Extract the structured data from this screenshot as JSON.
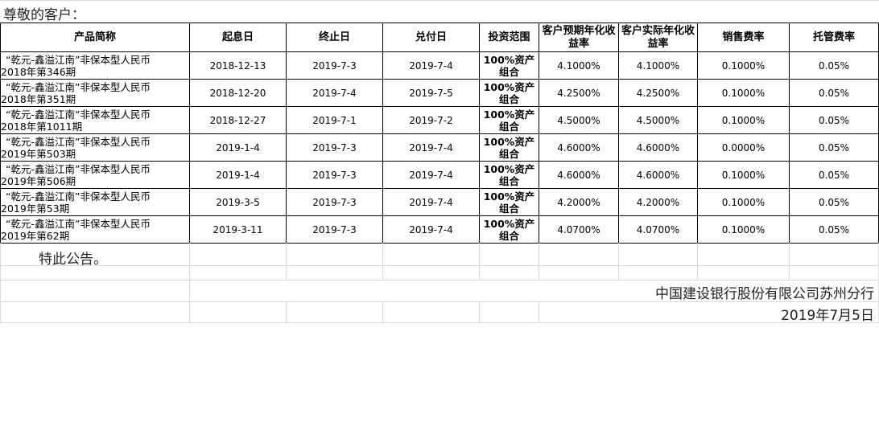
{
  "greeting": "尊敬的客户：",
  "headers": [
    "产品简称",
    "起息日",
    "终止日",
    "兑付日",
    "投资范围",
    "客户预期年化收益率",
    "客户实际年化收益率",
    "销售费率",
    "托管费率"
  ],
  "rows": [
    {
      "name1": "“乾元-鑫溢江南”非保本型人民币",
      "name2": "2018年第346期",
      "start": "2018-12-13",
      "end": "2019-7-3",
      "pay": "2019-7-4",
      "scope": "100%资产组合",
      "expected": "4.1000%",
      "actual": "4.1000%",
      "sales": "0.1000%",
      "custody": "0.05%"
    },
    {
      "name1": "“乾元-鑫溢江南”非保本型人民币",
      "name2": "2018年第351期",
      "start": "2018-12-20",
      "end": "2019-7-4",
      "pay": "2019-7-5",
      "scope": "100%资产组合",
      "expected": "4.2500%",
      "actual": "4.2500%",
      "sales": "0.1000%",
      "custody": "0.05%"
    },
    {
      "name1": "“乾元-鑫溢江南”非保本型人民币",
      "name2": "2018年第1011期",
      "start": "2018-12-27",
      "end": "2019-7-1",
      "pay": "2019-7-2",
      "scope": "100%资产组合",
      "expected": "4.5000%",
      "actual": "4.5000%",
      "sales": "0.1000%",
      "custody": "0.05%"
    },
    {
      "name1": "“乾元-鑫溢江南”非保本型人民币",
      "name2": "2019年第503期",
      "start": "2019-1-4",
      "end": "2019-7-3",
      "pay": "2019-7-4",
      "scope": "100%资产组合",
      "expected": "4.6000%",
      "actual": "4.6000%",
      "sales": "0.0000%",
      "custody": "0.05%"
    },
    {
      "name1": "“乾元-鑫溢江南”非保本型人民币",
      "name2": "2019年第506期",
      "start": "2019-1-4",
      "end": "2019-7-3",
      "pay": "2019-7-4",
      "scope": "100%资产组合",
      "expected": "4.6000%",
      "actual": "4.6000%",
      "sales": "0.1000%",
      "custody": "0.05%"
    },
    {
      "name1": "“乾元-鑫溢江南”非保本型人民币",
      "name2": "2019年第53期",
      "start": "2019-3-5",
      "end": "2019-7-3",
      "pay": "2019-7-4",
      "scope": "100%资产组合",
      "expected": "4.2000%",
      "actual": "4.2000%",
      "sales": "0.1000%",
      "custody": "0.05%"
    },
    {
      "name1": "“乾元-鑫溢江南”非保本型人民币",
      "name2": "2019年第62期",
      "start": "2019-3-11",
      "end": "2019-7-3",
      "pay": "2019-7-4",
      "scope": "100%资产组合",
      "expected": "4.0700%",
      "actual": "4.0700%",
      "sales": "0.1000%",
      "custody": "0.05%"
    }
  ],
  "notice": "特此公告。",
  "bank": "中国建设银行股份有限公司苏州分行",
  "date": "2019年7月5日"
}
